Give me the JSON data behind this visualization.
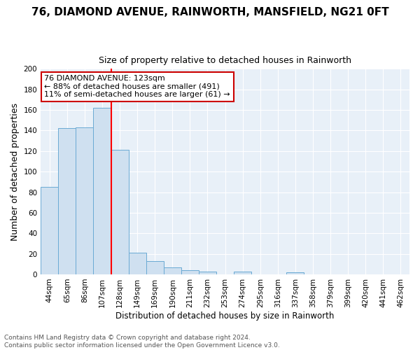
{
  "title1": "76, DIAMOND AVENUE, RAINWORTH, MANSFIELD, NG21 0FT",
  "title2": "Size of property relative to detached houses in Rainworth",
  "xlabel": "Distribution of detached houses by size in Rainworth",
  "ylabel": "Number of detached properties",
  "categories": [
    "44sqm",
    "65sqm",
    "86sqm",
    "107sqm",
    "128sqm",
    "149sqm",
    "169sqm",
    "190sqm",
    "211sqm",
    "232sqm",
    "253sqm",
    "274sqm",
    "295sqm",
    "316sqm",
    "337sqm",
    "358sqm",
    "379sqm",
    "399sqm",
    "420sqm",
    "441sqm",
    "462sqm"
  ],
  "values": [
    85,
    142,
    143,
    162,
    121,
    21,
    13,
    7,
    4,
    3,
    0,
    3,
    0,
    0,
    2,
    0,
    0,
    0,
    0,
    0,
    0
  ],
  "bar_color": "#cfe0f0",
  "bar_edge_color": "#6aaad4",
  "redline_index": 4,
  "annotation_line1": "76 DIAMOND AVENUE: 123sqm",
  "annotation_line2": "← 88% of detached houses are smaller (491)",
  "annotation_line3": "11% of semi-detached houses are larger (61) →",
  "annotation_box_facecolor": "#ffffff",
  "annotation_box_edgecolor": "#cc0000",
  "footer1": "Contains HM Land Registry data © Crown copyright and database right 2024.",
  "footer2": "Contains public sector information licensed under the Open Government Licence v3.0.",
  "ylim": [
    0,
    200
  ],
  "yticks": [
    0,
    20,
    40,
    60,
    80,
    100,
    120,
    140,
    160,
    180,
    200
  ],
  "background_color": "#ffffff",
  "plot_bg_color": "#e8f0f8",
  "grid_color": "#ffffff",
  "title1_fontsize": 11,
  "title2_fontsize": 9,
  "ylabel_fontsize": 9,
  "xlabel_fontsize": 8.5,
  "tick_fontsize": 7.5,
  "footer_fontsize": 6.5,
  "ann_fontsize": 8
}
